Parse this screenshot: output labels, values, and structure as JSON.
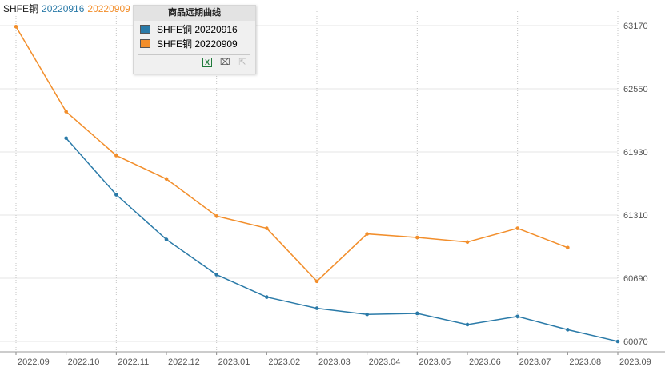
{
  "title": {
    "prefix": "SHFE铜",
    "series1": "20220916",
    "series2": "20220909"
  },
  "legend": {
    "header": "商品远期曲线",
    "items": [
      {
        "label": "SHFE铜 20220916",
        "color": "#2a7aa8"
      },
      {
        "label": "SHFE铜 20220909",
        "color": "#f28e2b"
      }
    ],
    "tools": [
      "excel-export-icon",
      "crop-icon",
      "select-icon"
    ]
  },
  "chart_data": {
    "type": "line",
    "x_categories": [
      "2022.09",
      "2022.10",
      "2022.11",
      "2022.12",
      "2023.01",
      "2023.02",
      "2023.03",
      "2023.04",
      "2023.05",
      "2023.06",
      "2023.07",
      "2023.08",
      "2023.09"
    ],
    "y_ticks": [
      60070,
      60690,
      61310,
      61930,
      62550,
      63170
    ],
    "ylim": [
      60070,
      63170
    ],
    "grid": true,
    "series": [
      {
        "name": "SHFE铜 20220916",
        "color": "#2a7aa8",
        "points": [
          {
            "x": "2022.10",
            "y": 62065
          },
          {
            "x": "2022.11",
            "y": 61510
          },
          {
            "x": "2022.12",
            "y": 61070
          },
          {
            "x": "2023.01",
            "y": 60725
          },
          {
            "x": "2023.02",
            "y": 60505
          },
          {
            "x": "2023.03",
            "y": 60395
          },
          {
            "x": "2023.04",
            "y": 60335
          },
          {
            "x": "2023.05",
            "y": 60345
          },
          {
            "x": "2023.06",
            "y": 60235
          },
          {
            "x": "2023.07",
            "y": 60315
          },
          {
            "x": "2023.08",
            "y": 60185
          },
          {
            "x": "2023.09",
            "y": 60070
          }
        ]
      },
      {
        "name": "SHFE铜 20220909",
        "color": "#f28e2b",
        "points": [
          {
            "x": "2022.09",
            "y": 63160
          },
          {
            "x": "2022.10",
            "y": 62325
          },
          {
            "x": "2022.11",
            "y": 61895
          },
          {
            "x": "2022.12",
            "y": 61665
          },
          {
            "x": "2023.01",
            "y": 61300
          },
          {
            "x": "2023.02",
            "y": 61180
          },
          {
            "x": "2023.03",
            "y": 60660
          },
          {
            "x": "2023.04",
            "y": 61125
          },
          {
            "x": "2023.05",
            "y": 61090
          },
          {
            "x": "2023.06",
            "y": 61045
          },
          {
            "x": "2023.07",
            "y": 61180
          },
          {
            "x": "2023.08",
            "y": 60990
          }
        ]
      }
    ]
  }
}
